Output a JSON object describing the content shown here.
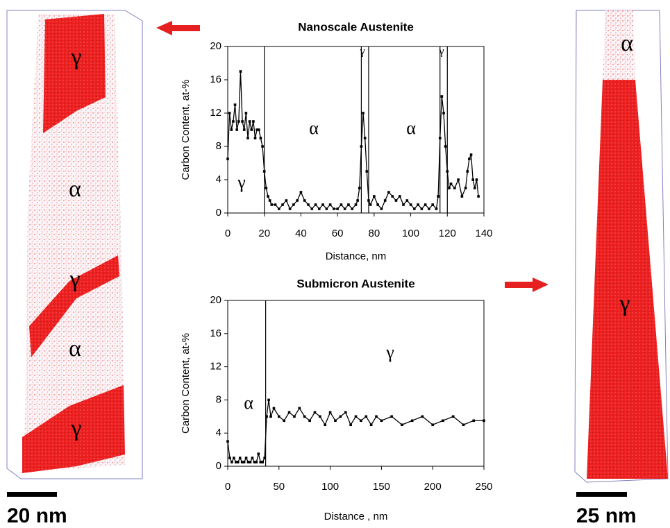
{
  "chart_data": [
    {
      "type": "line",
      "title": "Nanoscale Austenite",
      "x_label": "Distance, nm",
      "y_label": "Carbon Content, at-%",
      "x": [
        0,
        1,
        2,
        3,
        4,
        5,
        6,
        7,
        8,
        9,
        10,
        11,
        12,
        13,
        14,
        15,
        16,
        17,
        18,
        19,
        20,
        21,
        22,
        23,
        24,
        26,
        28,
        30,
        32,
        34,
        36,
        38,
        40,
        42,
        44,
        46,
        48,
        50,
        52,
        54,
        56,
        58,
        60,
        62,
        64,
        66,
        68,
        70,
        71,
        72,
        73,
        74,
        75,
        76,
        77,
        78,
        80,
        82,
        84,
        86,
        88,
        90,
        92,
        94,
        96,
        98,
        100,
        102,
        104,
        106,
        108,
        110,
        112,
        114,
        115,
        116,
        117,
        118,
        119,
        120,
        121,
        122,
        124,
        126,
        128,
        130,
        131,
        132,
        133,
        134,
        135,
        136,
        137
      ],
      "series": [
        {
          "color": "#000000",
          "values": [
            6.5,
            12,
            10,
            11,
            13,
            10,
            11,
            17,
            11,
            10,
            12,
            9,
            11,
            10,
            11,
            9,
            10,
            10,
            9,
            8,
            5,
            3,
            2,
            1.5,
            1,
            1,
            0.5,
            1,
            1.5,
            0.5,
            1,
            1.5,
            2.5,
            1.5,
            1,
            0.5,
            1,
            0.5,
            1,
            0.5,
            1,
            0.5,
            0.5,
            1,
            0.5,
            1,
            0.5,
            1,
            1.5,
            3,
            8,
            12,
            9,
            5,
            1.5,
            1,
            2,
            1,
            0.5,
            1.5,
            2.5,
            2,
            1.5,
            2,
            1,
            1.5,
            1,
            0.5,
            1,
            0.5,
            1,
            0.5,
            1,
            0.5,
            2,
            9,
            14,
            12,
            8,
            5,
            3,
            3.5,
            3,
            4,
            2,
            3,
            5,
            6.5,
            7,
            4,
            3,
            4,
            2
          ]
        }
      ],
      "xlim": [
        0,
        140
      ],
      "ylim": [
        0,
        20
      ],
      "xticks": [
        0,
        20,
        40,
        60,
        80,
        100,
        120,
        140
      ],
      "yticks": [
        0,
        4,
        8,
        12,
        16,
        20
      ],
      "boundaries": [
        20,
        73,
        77,
        116,
        120
      ],
      "annotations": [
        "γ",
        "α",
        "γ",
        "α",
        "γ"
      ]
    },
    {
      "type": "line",
      "title": "Submicron Austenite",
      "x_label": "Distance , nm",
      "y_label": "Carbon Content, at-%",
      "x": [
        0,
        2,
        4,
        6,
        8,
        10,
        12,
        14,
        16,
        18,
        20,
        22,
        24,
        26,
        28,
        30,
        32,
        34,
        36,
        38,
        40,
        42,
        45,
        50,
        55,
        60,
        65,
        70,
        75,
        80,
        85,
        90,
        95,
        100,
        105,
        110,
        115,
        120,
        125,
        130,
        135,
        140,
        145,
        150,
        160,
        170,
        180,
        190,
        200,
        210,
        220,
        230,
        240,
        250
      ],
      "series": [
        {
          "color": "#000000",
          "values": [
            3,
            1,
            0.5,
            1,
            0.5,
            0.5,
            1,
            0.5,
            0.5,
            1,
            0.5,
            0.5,
            1,
            0.5,
            0.5,
            1.5,
            0.5,
            0.5,
            1,
            6,
            8,
            6,
            7,
            6,
            5.5,
            6.5,
            6,
            7,
            6,
            5.5,
            6.5,
            6,
            5,
            6.5,
            5.5,
            6,
            6.5,
            5,
            6,
            5.5,
            6,
            5,
            6,
            5.5,
            6,
            5,
            5.5,
            6,
            5,
            5.5,
            6,
            5,
            5.5,
            5.5
          ]
        }
      ],
      "xlim": [
        0,
        250
      ],
      "ylim": [
        0,
        20
      ],
      "xticks": [
        0,
        50,
        100,
        150,
        200,
        250
      ],
      "yticks": [
        0,
        4,
        8,
        12,
        16,
        20
      ],
      "boundaries": [
        37
      ],
      "annotations": [
        "α",
        "γ"
      ]
    }
  ],
  "reconstructions": [
    {
      "phase_labels": [
        "γ",
        "α",
        "γ",
        "α",
        "γ"
      ],
      "scale_bar": "20 nm"
    },
    {
      "phase_labels": [
        "α",
        "γ"
      ],
      "scale_bar": "25 nm"
    }
  ]
}
